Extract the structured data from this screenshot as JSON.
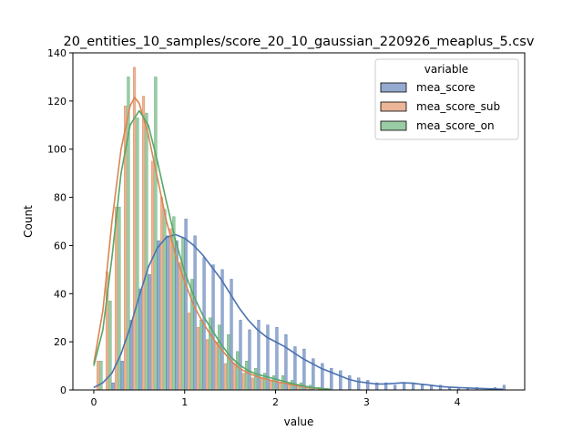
{
  "chart_data": {
    "type": "histogram",
    "title": "20_entities_10_samples/score_20_10_gaussian_220926_meaplus_5.csv",
    "xlabel": "value",
    "ylabel": "Count",
    "xlim": [
      -0.23,
      4.74
    ],
    "ylim": [
      0,
      140
    ],
    "x_ticks": [
      0,
      1,
      2,
      3,
      4
    ],
    "y_ticks": [
      0,
      20,
      40,
      60,
      80,
      100,
      120,
      140
    ],
    "grid": false,
    "bin_start": 0.0,
    "bin_width": 0.1,
    "legend": {
      "title": "variable",
      "placement": "top-right"
    },
    "series": [
      {
        "name": "mea_score",
        "color": "#4c72b0",
        "values": [
          0,
          0,
          3,
          12,
          29,
          42,
          48,
          62,
          64,
          62,
          71,
          64,
          55,
          52,
          50,
          46,
          29,
          25,
          29,
          27,
          26,
          23,
          18,
          17,
          13,
          11,
          9,
          8,
          6,
          5,
          4,
          3,
          3,
          2,
          3,
          3,
          2,
          2,
          2,
          1,
          1,
          1,
          1,
          0,
          1,
          2
        ],
        "kde": [
          [
            0.0,
            1
          ],
          [
            0.1,
            3
          ],
          [
            0.2,
            7
          ],
          [
            0.3,
            15
          ],
          [
            0.4,
            26
          ],
          [
            0.5,
            39
          ],
          [
            0.6,
            51
          ],
          [
            0.7,
            59
          ],
          [
            0.8,
            63.5
          ],
          [
            0.9,
            64.5
          ],
          [
            1.0,
            63
          ],
          [
            1.1,
            60
          ],
          [
            1.2,
            56
          ],
          [
            1.3,
            51
          ],
          [
            1.4,
            46
          ],
          [
            1.5,
            40
          ],
          [
            1.6,
            34
          ],
          [
            1.7,
            29
          ],
          [
            1.8,
            25
          ],
          [
            1.9,
            22
          ],
          [
            2.0,
            20
          ],
          [
            2.1,
            18
          ],
          [
            2.2,
            15.5
          ],
          [
            2.3,
            13
          ],
          [
            2.4,
            11
          ],
          [
            2.5,
            9
          ],
          [
            2.6,
            7.5
          ],
          [
            2.7,
            6
          ],
          [
            2.8,
            4.5
          ],
          [
            2.9,
            3.5
          ],
          [
            3.0,
            3
          ],
          [
            3.1,
            2.5
          ],
          [
            3.2,
            2.5
          ],
          [
            3.3,
            2.7
          ],
          [
            3.4,
            3
          ],
          [
            3.5,
            2.8
          ],
          [
            3.6,
            2.4
          ],
          [
            3.7,
            2
          ],
          [
            3.8,
            1.5
          ],
          [
            3.9,
            1.2
          ],
          [
            4.0,
            1
          ],
          [
            4.2,
            0.7
          ],
          [
            4.5,
            0.3
          ]
        ]
      },
      {
        "name": "mea_score_sub",
        "color": "#dd8452",
        "values": [
          12,
          49,
          76,
          118,
          134,
          122,
          95,
          80,
          67,
          53,
          32,
          26,
          21,
          20,
          11,
          11,
          7,
          5,
          5,
          4,
          3,
          2,
          2,
          1,
          0,
          0,
          0,
          0,
          0,
          0,
          0,
          0,
          0,
          0,
          0,
          0,
          0,
          0,
          0,
          0,
          0,
          0,
          0,
          0,
          0,
          0
        ],
        "kde": [
          [
            0.0,
            11
          ],
          [
            0.1,
            33
          ],
          [
            0.2,
            70
          ],
          [
            0.3,
            100
          ],
          [
            0.4,
            118
          ],
          [
            0.45,
            121.5
          ],
          [
            0.5,
            119
          ],
          [
            0.6,
            106
          ],
          [
            0.7,
            88
          ],
          [
            0.8,
            70
          ],
          [
            0.9,
            56
          ],
          [
            1.0,
            45
          ],
          [
            1.1,
            35
          ],
          [
            1.2,
            28
          ],
          [
            1.3,
            22
          ],
          [
            1.4,
            17
          ],
          [
            1.5,
            12.5
          ],
          [
            1.6,
            9
          ],
          [
            1.7,
            7
          ],
          [
            1.8,
            5.5
          ],
          [
            1.9,
            4.5
          ],
          [
            2.0,
            3.5
          ],
          [
            2.2,
            2
          ],
          [
            2.4,
            0.8
          ],
          [
            2.6,
            0.2
          ]
        ]
      },
      {
        "name": "mea_score_on",
        "color": "#55a868",
        "values": [
          12,
          37,
          76,
          130,
          113,
          115,
          130,
          75,
          72,
          63,
          46,
          29,
          30,
          27,
          23,
          16,
          12,
          9,
          7,
          6,
          6,
          4,
          3,
          2,
          1,
          0,
          0,
          0,
          0,
          0,
          0,
          0,
          0,
          0,
          0,
          0,
          0,
          0,
          0,
          0,
          0,
          0,
          0,
          0,
          0,
          0
        ],
        "kde": [
          [
            0.0,
            10
          ],
          [
            0.1,
            25
          ],
          [
            0.2,
            55
          ],
          [
            0.3,
            90
          ],
          [
            0.4,
            110
          ],
          [
            0.5,
            116
          ],
          [
            0.6,
            110
          ],
          [
            0.7,
            95
          ],
          [
            0.8,
            78
          ],
          [
            0.9,
            62
          ],
          [
            1.0,
            49
          ],
          [
            1.1,
            39
          ],
          [
            1.2,
            31
          ],
          [
            1.3,
            25
          ],
          [
            1.4,
            19
          ],
          [
            1.5,
            14
          ],
          [
            1.6,
            10.5
          ],
          [
            1.7,
            8
          ],
          [
            1.8,
            6.5
          ],
          [
            1.9,
            5.5
          ],
          [
            2.0,
            4.5
          ],
          [
            2.2,
            2.5
          ],
          [
            2.4,
            1
          ],
          [
            2.6,
            0.3
          ]
        ]
      }
    ]
  }
}
